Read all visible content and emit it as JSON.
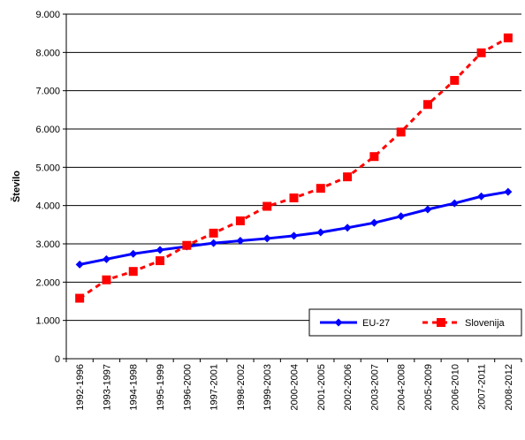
{
  "chart_data": {
    "type": "line",
    "title": "",
    "xlabel": "",
    "ylabel": "Število",
    "categories": [
      "1992-1996",
      "1993-1997",
      "1994-1998",
      "1995-1999",
      "1996-2000",
      "1997-2001",
      "1998-2002",
      "1999-2003",
      "2000-2004",
      "2001-2005",
      "2002-2006",
      "2003-2007",
      "2004-2008",
      "2005-2009",
      "2006-2010",
      "2007-2011",
      "2008-2012"
    ],
    "ylim": [
      0,
      9000
    ],
    "yticks": [
      0,
      1000,
      2000,
      3000,
      4000,
      5000,
      6000,
      7000,
      8000,
      9000
    ],
    "ytick_labels": [
      "0",
      "1.000",
      "2.000",
      "3.000",
      "4.000",
      "5.000",
      "6.000",
      "7.000",
      "8.000",
      "9.000"
    ],
    "grid": "horizontal",
    "legend_position": "bottom-right",
    "series": [
      {
        "name": "EU-27",
        "color": "#0000ff",
        "line_style": "solid",
        "marker": "diamond",
        "values": [
          2460,
          2600,
          2740,
          2840,
          2930,
          3020,
          3080,
          3140,
          3210,
          3300,
          3420,
          3550,
          3720,
          3900,
          4060,
          4240,
          4360
        ]
      },
      {
        "name": "Slovenija",
        "color": "#ff0000",
        "line_style": "dashed",
        "marker": "square",
        "values": [
          1580,
          2060,
          2280,
          2560,
          2960,
          3280,
          3600,
          3980,
          4200,
          4450,
          4750,
          5280,
          5920,
          6640,
          7270,
          7990,
          8380
        ]
      }
    ]
  }
}
